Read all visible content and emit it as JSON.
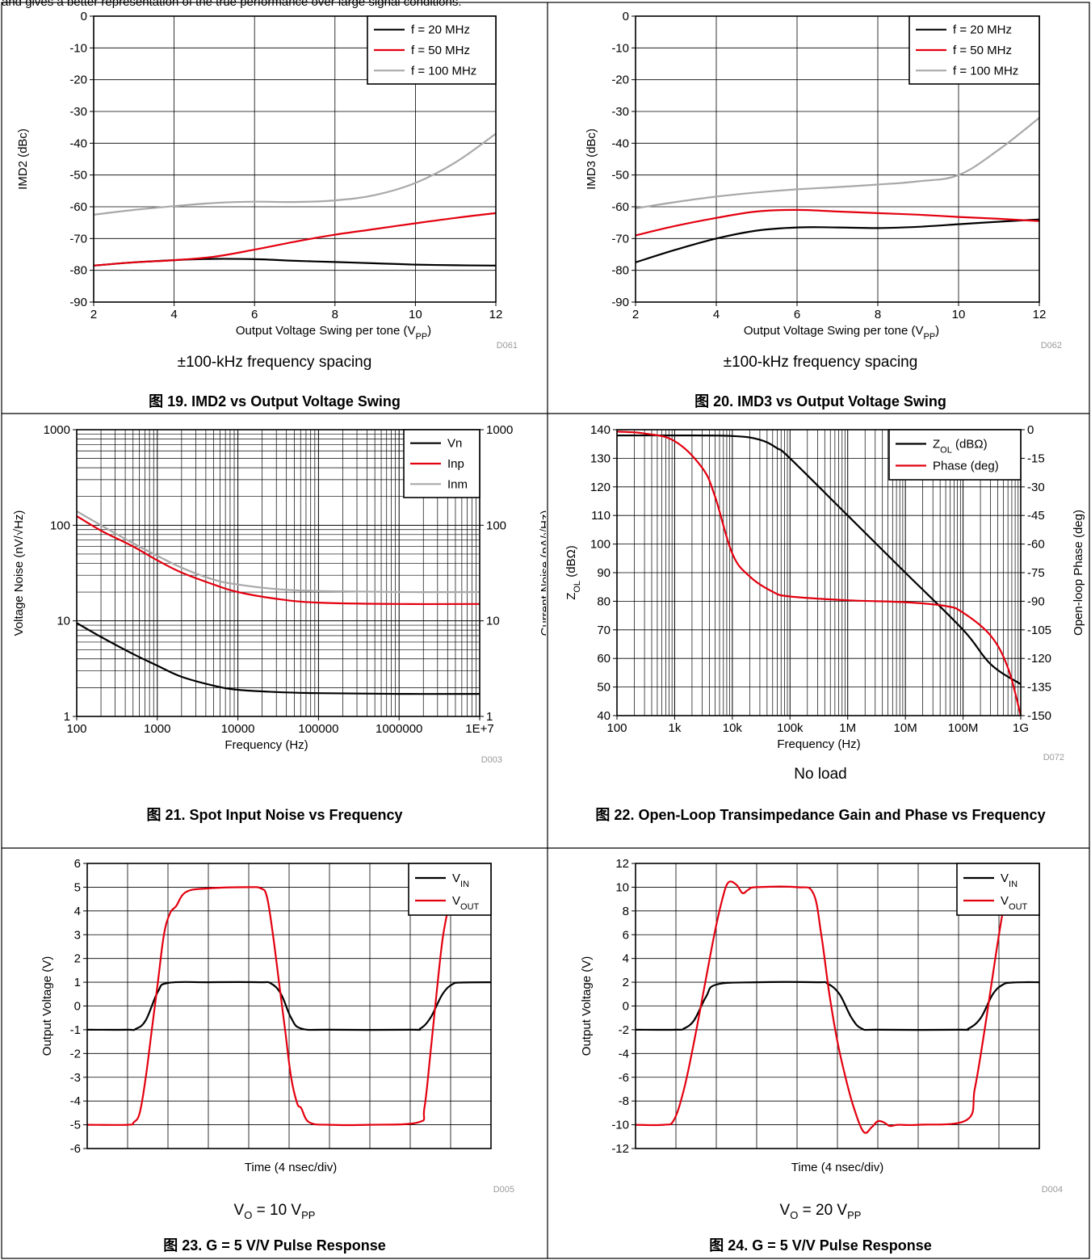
{
  "header_text": "and gives a better representation of the true performance over large signal conditions.",
  "colors": {
    "black": "#000000",
    "red": "#e3000f",
    "gray": "#a8a8a8"
  },
  "panels": [
    {
      "code": "D061",
      "caption": "±100-kHz frequency spacing",
      "title": "图 19. IMD2 vs Output Voltage Swing",
      "chart_data": {
        "type": "line",
        "xlabel": "Output Voltage Swing per tone (V_PP)",
        "ylabel": "IMD2 (dBc)",
        "xlim": [
          2,
          12
        ],
        "ylim": [
          -90,
          0
        ],
        "xticks": [
          "2",
          "4",
          "6",
          "8",
          "10",
          "12"
        ],
        "yticks": [
          "0",
          "-10",
          "-20",
          "-30",
          "-40",
          "-50",
          "-60",
          "-70",
          "-80",
          "-90"
        ],
        "grid": true,
        "legend": "top-right",
        "x": [
          2,
          3,
          4,
          5,
          6,
          7,
          8,
          9,
          10,
          11,
          12
        ],
        "series": [
          {
            "name": "f = 20 MHz",
            "color": "black",
            "values": [
              -78.5,
              -77.5,
              -76.8,
              -76.4,
              -76.5,
              -77,
              -77.4,
              -77.8,
              -78.2,
              -78.4,
              -78.5
            ]
          },
          {
            "name": "f = 50 MHz",
            "color": "red",
            "values": [
              -78.5,
              -77.5,
              -76.8,
              -75.7,
              -73.5,
              -71,
              -68.8,
              -67,
              -65.2,
              -63.5,
              -62
            ]
          },
          {
            "name": "f = 100 MHz",
            "color": "gray",
            "values": [
              -62.5,
              -61,
              -59.8,
              -58.8,
              -58.4,
              -58.5,
              -58,
              -56.3,
              -52.5,
              -46,
              -37
            ]
          }
        ]
      }
    },
    {
      "code": "D062",
      "caption": "±100-kHz frequency spacing",
      "title": "图 20. IMD3 vs Output Voltage Swing",
      "chart_data": {
        "type": "line",
        "xlabel": "Output Voltage Swing per tone (V_PP)",
        "ylabel": "IMD3 (dBc)",
        "xlim": [
          2,
          12
        ],
        "ylim": [
          -90,
          0
        ],
        "xticks": [
          "2",
          "4",
          "6",
          "8",
          "10",
          "12"
        ],
        "yticks": [
          "0",
          "-10",
          "-20",
          "-30",
          "-40",
          "-50",
          "-60",
          "-70",
          "-80",
          "-90"
        ],
        "grid": true,
        "legend": "top-right",
        "x": [
          2,
          3,
          4,
          5,
          6,
          7,
          8,
          9,
          10,
          11,
          12
        ],
        "series": [
          {
            "name": "f = 20 MHz",
            "color": "black",
            "values": [
              -77.5,
              -73.5,
              -70,
              -67.5,
              -66.5,
              -66.5,
              -66.7,
              -66.3,
              -65.5,
              -64.7,
              -64
            ]
          },
          {
            "name": "f = 50 MHz",
            "color": "red",
            "values": [
              -69,
              -66,
              -63.5,
              -61.5,
              -61,
              -61.5,
              -62,
              -62.5,
              -63.2,
              -63.8,
              -64.5
            ]
          },
          {
            "name": "f = 100 MHz",
            "color": "gray",
            "values": [
              -60.5,
              -58.5,
              -56.8,
              -55.5,
              -54.5,
              -53.8,
              -53,
              -52,
              -50,
              -42,
              -32
            ]
          }
        ]
      }
    },
    {
      "code": "D003",
      "caption": "",
      "title": "图 21. Spot Input Noise vs Frequency",
      "chart_data": {
        "type": "line",
        "xscale": "log",
        "yscale": "log",
        "xlabel": "Frequency (Hz)",
        "ylabel": "Voltage Noise (nV/√Hz)",
        "y2label": "Current Noise (pA/√Hz)",
        "xlim": [
          100,
          10000000
        ],
        "ylim": [
          1,
          1000
        ],
        "xticks": [
          "100",
          "1000",
          "10000",
          "100000",
          "1000000",
          "1E+7"
        ],
        "yticks": [
          "1",
          "10",
          "100",
          "1000"
        ],
        "y2ticks": [
          "1",
          "10",
          "100",
          "1000"
        ],
        "grid": true,
        "legend": "top-right",
        "x": [
          100,
          200,
          500,
          1000,
          2000,
          5000,
          10000,
          30000,
          100000,
          1000000,
          10000000
        ],
        "series": [
          {
            "name": "Vn",
            "color": "black",
            "values": [
              9.5,
              6.8,
              4.5,
              3.4,
              2.6,
              2.1,
              1.9,
              1.8,
              1.75,
              1.72,
              1.72
            ]
          },
          {
            "name": "Inp",
            "color": "red",
            "values": [
              125,
              88,
              60,
              43,
              32,
              24,
              20,
              17,
              15.5,
              15,
              15
            ]
          },
          {
            "name": "Inm",
            "color": "gray",
            "values": [
              140,
              100,
              65,
              48,
              36,
              27,
              24,
              21.5,
              20.5,
              20,
              20
            ]
          }
        ]
      }
    },
    {
      "code": "D072",
      "caption": "No load",
      "title": "图 22. Open-Loop Transimpedance Gain and Phase vs Frequency",
      "chart_data": {
        "type": "line",
        "xscale": "log",
        "xlabel": "Frequency (Hz)",
        "ylabel": "Z_OL (dBΩ)",
        "y2label": "Open-loop Phase (deg)",
        "xlim": [
          100,
          1000000000
        ],
        "ylim": [
          40,
          140
        ],
        "y2lim": [
          -150,
          0
        ],
        "xticks": [
          "100",
          "1k",
          "10k",
          "100k",
          "1M",
          "10M",
          "100M",
          "1G"
        ],
        "yticks": [
          "40",
          "50",
          "60",
          "70",
          "80",
          "90",
          "100",
          "110",
          "120",
          "130",
          "140"
        ],
        "y2ticks": [
          "0",
          "-15",
          "-30",
          "-45",
          "-60",
          "-75",
          "-90",
          "-105",
          "-120",
          "-135",
          "-150"
        ],
        "grid": true,
        "legend": "top-right",
        "series": [
          {
            "name": "Z_OL (dBΩ)",
            "color": "black",
            "axis": "left",
            "x": [
              100,
              1000,
              10000,
              30000,
              60000,
              100000,
              1000000,
              10000000,
              100000000,
              300000000,
              1000000000
            ],
            "values": [
              138,
              138,
              137.8,
              136.5,
              133.5,
              130,
              110,
              90,
              70,
              58,
              51
            ]
          },
          {
            "name": "Phase (deg)",
            "color": "red",
            "axis": "right",
            "x": [
              100,
              300,
              1000,
              3000,
              5000,
              10000,
              20000,
              50000,
              100000,
              1000000,
              10000000,
              50000000,
              100000000,
              300000000,
              600000000,
              1000000000
            ],
            "values": [
              -1,
              -2,
              -6,
              -20,
              -35,
              -65,
              -77,
              -85,
              -87.5,
              -89.5,
              -90.5,
              -92.5,
              -96,
              -108,
              -125,
              -150
            ]
          }
        ]
      }
    },
    {
      "code": "D005",
      "caption": "V_O = 10 V_PP",
      "title": "图 23. G = 5 V/V Pulse Response",
      "chart_data": {
        "type": "line",
        "xlabel": "Time (4 nsec/div)",
        "ylabel": "Output Voltage (V)",
        "xlim": [
          0,
          10
        ],
        "ylim": [
          -6,
          6
        ],
        "yticks": [
          "6",
          "5",
          "4",
          "3",
          "2",
          "1",
          "0",
          "-1",
          "-2",
          "-3",
          "-4",
          "-5",
          "-6"
        ],
        "grid": true,
        "legend": "top-right",
        "series": [
          {
            "name": "V_IN",
            "color": "black",
            "x": [
              0,
              1,
              1.2,
              1.45,
              1.75,
              2,
              3,
              4.25,
              4.55,
              4.8,
              5.05,
              5.3,
              6,
              8,
              8.25,
              8.5,
              8.8,
              9.05,
              9.3,
              10
            ],
            "values": [
              -1,
              -1,
              -0.97,
              -0.6,
              0.6,
              0.97,
              1,
              1,
              0.95,
              0.5,
              -0.5,
              -0.95,
              -1,
              -1,
              -0.95,
              -0.5,
              0.5,
              0.92,
              0.99,
              1
            ]
          },
          {
            "name": "V_OUT",
            "color": "red",
            "x": [
              0,
              1,
              1.15,
              1.3,
              1.45,
              1.6,
              1.75,
              1.9,
              2.05,
              2.2,
              2.45,
              3,
              4,
              4.3,
              4.45,
              4.6,
              4.75,
              4.9,
              5.05,
              5.2,
              5.3,
              5.5,
              6,
              7,
              8.2,
              8.35,
              8.5,
              8.65,
              8.8,
              8.95
            ],
            "values": [
              -5,
              -5,
              -4.9,
              -4.5,
              -3,
              -1,
              1,
              3,
              3.9,
              4.2,
              4.8,
              4.95,
              5,
              4.95,
              4.6,
              3,
              1,
              -1,
              -3,
              -4.1,
              -4.3,
              -4.9,
              -5,
              -5,
              -4.9,
              -4.3,
              -2,
              0.5,
              2.8,
              4.2
            ]
          }
        ]
      }
    },
    {
      "code": "D004",
      "caption": "V_O = 20 V_PP",
      "title": "图 24. G = 5 V/V Pulse Response",
      "chart_data": {
        "type": "line",
        "xlabel": "Time (4 nsec/div)",
        "ylabel": "Output Voltage (V)",
        "xlim": [
          0,
          10
        ],
        "ylim": [
          -12,
          12
        ],
        "yticks": [
          "12",
          "10",
          "8",
          "6",
          "4",
          "2",
          "0",
          "-2",
          "-4",
          "-6",
          "-8",
          "-10",
          "-12"
        ],
        "grid": true,
        "legend": "top-right",
        "series": [
          {
            "name": "V_IN",
            "color": "black",
            "x": [
              0,
              1,
              1.2,
              1.45,
              1.75,
              2,
              3,
              4.5,
              4.75,
              5.05,
              5.35,
              5.6,
              6,
              8,
              8.25,
              8.55,
              8.85,
              9.1,
              9.35,
              10
            ],
            "values": [
              -2,
              -2,
              -1.9,
              -1.2,
              0.8,
              1.8,
              2,
              2,
              1.9,
              1,
              -1,
              -1.9,
              -2,
              -2,
              -1.9,
              -1,
              1,
              1.8,
              1.98,
              2
            ]
          },
          {
            "name": "V_OUT",
            "color": "red",
            "x": [
              0,
              0.7,
              0.95,
              1.2,
              1.45,
              1.7,
              1.95,
              2.15,
              2.3,
              2.5,
              2.65,
              2.8,
              3,
              4,
              4.4,
              4.6,
              4.8,
              5.0,
              5.2,
              5.4,
              5.65,
              5.85,
              6.0,
              6.15,
              6.3,
              6.5,
              7,
              8.2,
              8.4,
              8.6,
              8.8,
              9.0,
              9.2
            ],
            "values": [
              -10,
              -10,
              -9.6,
              -7,
              -3,
              1.5,
              6,
              9,
              10.4,
              10.2,
              9.5,
              9.8,
              10,
              10,
              9.5,
              6,
              1,
              -3,
              -6,
              -8.5,
              -10.6,
              -10.2,
              -9.7,
              -9.8,
              -10.1,
              -10,
              -10,
              -9.6,
              -7,
              -3,
              1.5,
              6,
              10
            ]
          }
        ]
      }
    }
  ]
}
